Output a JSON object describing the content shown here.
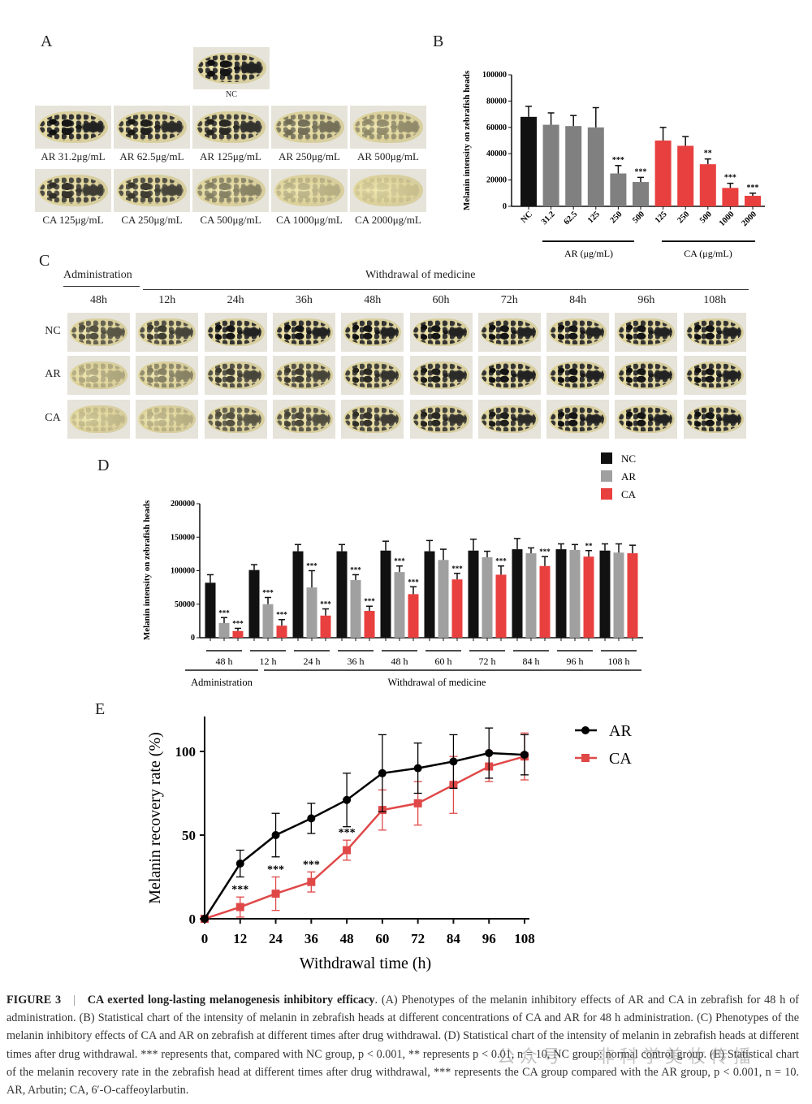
{
  "panel_letters": {
    "a": "A",
    "b": "B",
    "c": "C",
    "d": "D",
    "e": "E"
  },
  "panel_a": {
    "nc": {
      "label": "NC",
      "pigment": 1
    },
    "row_ar": [
      {
        "label": "AR 31.2μg/mL",
        "pigment": 1
      },
      {
        "label": "AR 62.5μg/mL",
        "pigment": 0.95
      },
      {
        "label": "AR 125μg/mL",
        "pigment": 0.9
      },
      {
        "label": "AR 250μg/mL",
        "pigment": 0.55
      },
      {
        "label": "AR 500μg/mL",
        "pigment": 0.4
      }
    ],
    "row_ca": [
      {
        "label": "CA 125μg/mL",
        "pigment": 0.85
      },
      {
        "label": "CA 250μg/mL",
        "pigment": 0.8
      },
      {
        "label": "CA 500μg/mL",
        "pigment": 0.45
      },
      {
        "label": "CA 1000μg/mL",
        "pigment": 0.2
      },
      {
        "label": "CA 2000μg/mL",
        "pigment": 0.1
      }
    ]
  },
  "panel_c": {
    "administration": "Administration",
    "withdrawal": "Withdrawal of medicine",
    "columns": [
      "48h",
      "12h",
      "24h",
      "36h",
      "48h",
      "60h",
      "72h",
      "84h",
      "96h",
      "108h"
    ],
    "rows": [
      {
        "label": "NC",
        "pigment": [
          0.7,
          0.8,
          1,
          1,
          1,
          1,
          1,
          1,
          1,
          1
        ]
      },
      {
        "label": "AR",
        "pigment": [
          0.25,
          0.45,
          0.8,
          0.8,
          0.9,
          0.95,
          1,
          1,
          1,
          1
        ]
      },
      {
        "label": "CA",
        "pigment": [
          0.15,
          0.2,
          0.7,
          0.75,
          0.85,
          0.9,
          0.95,
          1,
          1,
          1
        ]
      }
    ]
  },
  "chart_data": [
    {
      "id": "B",
      "type": "bar",
      "ylabel": "Melanin intensity on zebrafish heads",
      "ylim": [
        0,
        100000
      ],
      "yticks": [
        "0",
        "20000",
        "40000",
        "60000",
        "80000",
        "100000"
      ],
      "categories": [
        "NC",
        "31.2",
        "62.5",
        "125",
        "250",
        "500",
        "125",
        "250",
        "500",
        "1000",
        "2000"
      ],
      "groups": [
        "NC",
        "AR",
        "AR",
        "AR",
        "AR",
        "AR",
        "CA",
        "CA",
        "CA",
        "CA",
        "CA"
      ],
      "values": [
        68000,
        62000,
        61000,
        60000,
        25000,
        18500,
        50000,
        46000,
        32000,
        14000,
        8000
      ],
      "errors": [
        8000,
        9000,
        8000,
        15000,
        6000,
        3500,
        10000,
        7000,
        4000,
        3500,
        2000
      ],
      "sig": [
        "",
        "",
        "",
        "",
        "***",
        "***",
        "",
        "",
        "**",
        "***",
        "***"
      ],
      "group_labels": [
        "AR (μg/mL)",
        "CA (μg/mL)"
      ],
      "colors": {
        "NC": "#111111",
        "AR": "#808080",
        "CA": "#e8403f"
      }
    },
    {
      "id": "D",
      "type": "bar",
      "ylabel": "Melanin intensity on zebrafish heads",
      "ylim": [
        0,
        200000
      ],
      "yticks": [
        "0",
        "50000",
        "100000",
        "150000",
        "200000"
      ],
      "categories": [
        "48 h",
        "12 h",
        "24 h",
        "36 h",
        "48 h",
        "60 h",
        "72 h",
        "84 h",
        "96 h",
        "108 h"
      ],
      "phase_labels": [
        "Administration",
        "Withdrawal of medicine"
      ],
      "legend": [
        "NC",
        "AR",
        "CA"
      ],
      "legend_position": "top-right",
      "series": [
        {
          "name": "NC",
          "color": "#111111",
          "values": [
            82000,
            101000,
            129000,
            129000,
            130000,
            129000,
            130000,
            132000,
            132000,
            130000
          ],
          "errors": [
            12000,
            8000,
            10000,
            10000,
            14000,
            16000,
            17000,
            16000,
            8000,
            10000
          ],
          "sig": [
            "",
            "",
            "",
            "",
            "",
            "",
            "",
            "",
            "",
            ""
          ]
        },
        {
          "name": "AR",
          "color": "#a0a0a0",
          "values": [
            22000,
            50000,
            75000,
            86000,
            98000,
            116000,
            120000,
            126000,
            131000,
            127000
          ],
          "errors": [
            8000,
            10000,
            25000,
            8000,
            9000,
            16000,
            9000,
            8000,
            8000,
            13000
          ],
          "sig": [
            "***",
            "***",
            "***",
            "***",
            "***",
            "",
            "",
            "",
            "",
            ""
          ]
        },
        {
          "name": "CA",
          "color": "#e8403f",
          "values": [
            10000,
            18000,
            33000,
            40000,
            65000,
            87000,
            94000,
            107000,
            121000,
            126000
          ],
          "errors": [
            4000,
            9000,
            10000,
            7000,
            11000,
            9000,
            13000,
            14000,
            9000,
            12000
          ],
          "sig": [
            "***",
            "***",
            "***",
            "***",
            "***",
            "***",
            "***",
            "***",
            "**",
            ""
          ]
        }
      ]
    },
    {
      "id": "E",
      "type": "line",
      "xlabel": "Withdrawal time (h)",
      "ylabel": "Melanin recovery rate (%)",
      "x": [
        0,
        12,
        24,
        36,
        48,
        60,
        72,
        84,
        96,
        108
      ],
      "xlim": [
        0,
        108
      ],
      "ylim": [
        0,
        120
      ],
      "yticks": [
        "0",
        "50",
        "100"
      ],
      "xticks": [
        "0",
        "12",
        "24",
        "36",
        "48",
        "60",
        "72",
        "84",
        "96",
        "108"
      ],
      "legend_position": "top-right",
      "series": [
        {
          "name": "AR",
          "color": "#000000",
          "marker": "circle",
          "values": [
            0,
            33,
            50,
            60,
            71,
            87,
            90,
            94,
            99,
            98
          ],
          "errors": [
            0,
            8,
            13,
            9,
            16,
            23,
            15,
            16,
            15,
            12
          ]
        },
        {
          "name": "CA",
          "color": "#e04848",
          "marker": "square",
          "values": [
            0,
            7,
            15,
            22,
            41,
            65,
            69,
            80,
            91,
            97
          ],
          "errors": [
            0,
            6,
            10,
            6,
            6,
            12,
            13,
            17,
            9,
            14
          ]
        }
      ],
      "sig_points": [
        {
          "x": 12,
          "label": "***"
        },
        {
          "x": 24,
          "label": "***"
        },
        {
          "x": 36,
          "label": "***"
        },
        {
          "x": 48,
          "label": "***"
        }
      ]
    }
  ],
  "caption": {
    "figure": "FIGURE 3",
    "sep": "|",
    "title": "CA exerted long-lasting melanogenesis inhibitory efficacy",
    "body": ". (A) Phenotypes of the melanin inhibitory effects of AR and CA in zebrafish for 48 h of administration. (B) Statistical chart of the intensity of melanin in zebrafish heads at different concentrations of CA and AR for 48 h administration. (C) Phenotypes of the melanin inhibitory effects of CA and AR on zebrafish at different times after drug withdrawal. (D) Statistical chart of the intensity of melanin in zebrafish heads at different times after drug withdrawal. *** represents that, compared with NC group, p < 0.001, ** represents p < 0.01, n = 10, NC group: normal control group. (E) Statistical chart of the melanin recovery rate in the zebrafish head at different times after drug withdrawal, *** represents the CA group compared with the AR group, p < 0.001, n = 10. AR, Arbutin; CA, 6′-O-caffeoylarbutin."
  },
  "watermark": "公众号 · 非科学美妆传播"
}
